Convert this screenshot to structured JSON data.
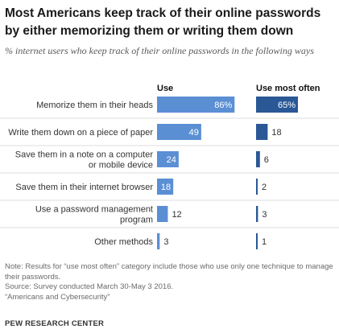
{
  "header": {
    "title": "Most Americans keep track of their online passwords by either memorizing them or writing them down",
    "subtitle": "% internet users who keep track of their online passwords in the following ways"
  },
  "chart_data": {
    "type": "bar",
    "orientation": "horizontal",
    "layout": "two-panel",
    "categories": [
      [
        "Memorize them in their heads"
      ],
      [
        "Write them down on a piece of paper"
      ],
      [
        "Save them in a note on a computer",
        "or mobile device"
      ],
      [
        "Save them in their internet browser"
      ],
      [
        "Use a password management",
        "program"
      ],
      [
        "Other methods"
      ]
    ],
    "series": [
      {
        "name": "Use",
        "color": "#5b8fd4",
        "values": [
          86,
          49,
          24,
          18,
          12,
          3
        ],
        "labels": [
          "86%",
          "49",
          "24",
          "18",
          "12",
          "3"
        ]
      },
      {
        "name": "Use most often",
        "color": "#2a5896",
        "values": [
          65,
          18,
          6,
          2,
          3,
          1
        ],
        "labels": [
          "65%",
          "18",
          "6",
          "2",
          "3",
          "1"
        ]
      }
    ],
    "xlim": [
      0,
      100
    ],
    "grid": false,
    "row_separators": true,
    "row_separator_color": "#dddddd"
  },
  "footer": {
    "note": "Note: Results for “use most often” category include those who use only one technique to manage their passwords.",
    "source": "Source: Survey conducted March 30-May 3 2016.",
    "report": "“Americans and Cybersecurity”",
    "org": "PEW RESEARCH CENTER"
  }
}
